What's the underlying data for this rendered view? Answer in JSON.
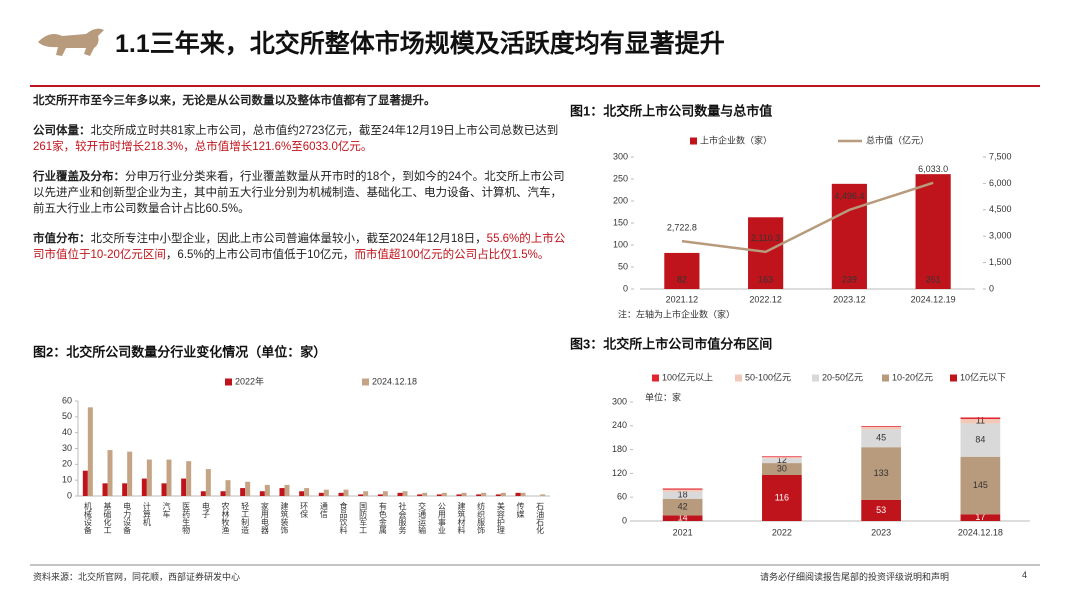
{
  "header": {
    "title": "1.1三年来，北交所整体市场规模及活跃度均有显著提升"
  },
  "text": {
    "paragraphs": [
      {
        "runs": [
          {
            "text": "北交所开市至今三年多以来，无论是从公司数量以及整体市值都有了显著提升。",
            "style": "bold"
          }
        ]
      },
      {
        "runs": [
          {
            "text": "公司体量：",
            "style": "bold"
          },
          {
            "text": "北交所成立时共81家上市公司，总市值约2723亿元，截至24年12月19日上市公司总数已达到",
            "style": "normal"
          },
          {
            "text": "261家，较开市时增长218.3%，总市值增长121.6%至6033.0亿元。",
            "style": "red"
          }
        ]
      },
      {
        "runs": [
          {
            "text": "行业覆盖及分布：",
            "style": "bold"
          },
          {
            "text": "分申万行业分类来看，行业覆盖数量从开市时的18个，到如今的24个。北交所上市公司以先进产业和创新型企业为主，其中前五大行业分别为机械制造、基础化工、电力设备、计算机、汽车，前五大行业上市公司数量合计占比60.5%。",
            "style": "normal"
          }
        ]
      },
      {
        "runs": [
          {
            "text": "市值分布：",
            "style": "bold"
          },
          {
            "text": "北交所专注中小型企业，因此上市公司普遍体量较小，截至2024年12月18日，",
            "style": "normal"
          },
          {
            "text": "55.6%的上市公司市值位于10-20亿元区间",
            "style": "red"
          },
          {
            "text": "，6.5%的上市公司市值低于10亿元，",
            "style": "normal"
          },
          {
            "text": "而市值超100亿元的公司占比仅1.5%。",
            "style": "red"
          }
        ]
      }
    ]
  },
  "chart_data": [
    {
      "type": "combo",
      "title": "图1：北交所上市公司数量与总市值",
      "note": "注：左轴为上市企业数（家）",
      "categories": [
        "2021.12",
        "2022.12",
        "2023.12",
        "2024.12.19"
      ],
      "series": [
        {
          "name": "上市企业数（家）",
          "type": "bar",
          "color": "#c0141c",
          "values": [
            82,
            163,
            239,
            261
          ]
        },
        {
          "name": "总市值（亿元）",
          "type": "line",
          "axis": "y2",
          "color": "#b89a7c",
          "values": [
            2722.8,
            2110.3,
            4496.4,
            6033.0
          ],
          "value_labels": [
            "2,722.8",
            "2,110.3",
            "4,496.4",
            "6,033.0"
          ]
        }
      ],
      "ylim": [
        0,
        300
      ],
      "yticks": [
        0,
        50,
        100,
        150,
        200,
        250,
        300
      ],
      "y2lim": [
        0,
        7500
      ],
      "y2ticks": [
        0,
        {
          "value": 1500,
          "label": "1,500"
        },
        {
          "value": 3000,
          "label": "3,000"
        },
        {
          "value": 4500,
          "label": "4,500"
        },
        {
          "value": 6000,
          "label": "6,000"
        },
        {
          "value": 7500,
          "label": "7,500"
        }
      ]
    },
    {
      "type": "bar",
      "title": "图2：北交所公司数量分行业变化情况（单位：家）",
      "categories": [
        "机械设备",
        "基础化工",
        "电力设备",
        "计算机",
        "汽车",
        "医药生物",
        "电子",
        "农林牧渔",
        "轻工制造",
        "家用电器",
        "建筑装饰",
        "环保",
        "通信",
        "食品饮料",
        "国防军工",
        "有色金属",
        "社会服务",
        "交通运输",
        "公用事业",
        "建筑材料",
        "纺织服饰",
        "美容护理",
        "传媒",
        "石油石化"
      ],
      "series": [
        {
          "name": "2022年",
          "color": "#c0141c",
          "values": [
            16,
            8,
            8,
            11,
            8,
            11,
            3,
            3,
            5,
            3,
            5,
            3,
            2,
            2,
            1,
            1,
            2,
            1,
            1,
            1,
            1,
            1,
            2,
            0
          ]
        },
        {
          "name": "2024.12.18",
          "color": "#c4a484",
          "values": [
            56,
            29,
            28,
            23,
            23,
            22,
            17,
            10,
            9,
            7,
            7,
            5,
            4,
            4,
            3,
            3,
            3,
            2,
            2,
            2,
            2,
            2,
            2,
            1
          ]
        }
      ],
      "ylim": [
        0,
        60
      ],
      "yticks": [
        0,
        10,
        20,
        30,
        40,
        50,
        60
      ]
    },
    {
      "type": "stacked_bar",
      "title": "图3：北交所上市公司市值分布区间",
      "annotation": "单位：家",
      "categories": [
        "2021",
        "2022",
        "2023",
        "2024.12.18"
      ],
      "series": [
        {
          "name": "100亿元以上",
          "color": "#e3262e",
          "values": [
            3,
            2,
            2,
            4
          ]
        },
        {
          "name": "50-100亿元",
          "color": "#f2c9b8",
          "values": [
            5,
            3,
            6,
            11
          ]
        },
        {
          "name": "20-50亿元",
          "color": "#d9d9d9",
          "values": [
            18,
            12,
            45,
            84
          ]
        },
        {
          "name": "10-20亿元",
          "color": "#b89a7c",
          "values": [
            42,
            30,
            133,
            145
          ]
        },
        {
          "name": "10亿元以下",
          "color": "#c0141c",
          "values": [
            14,
            116,
            53,
            17
          ]
        }
      ],
      "ylim": [
        0,
        300
      ],
      "yticks": [
        0,
        60,
        120,
        180,
        240,
        300
      ]
    }
  ],
  "footer": {
    "source": "资料来源：北交所官网，同花顺，西部证券研发中心",
    "disclaimer": "请务必仔细阅读报告尾部的投资评级说明和声明",
    "page": "4"
  }
}
